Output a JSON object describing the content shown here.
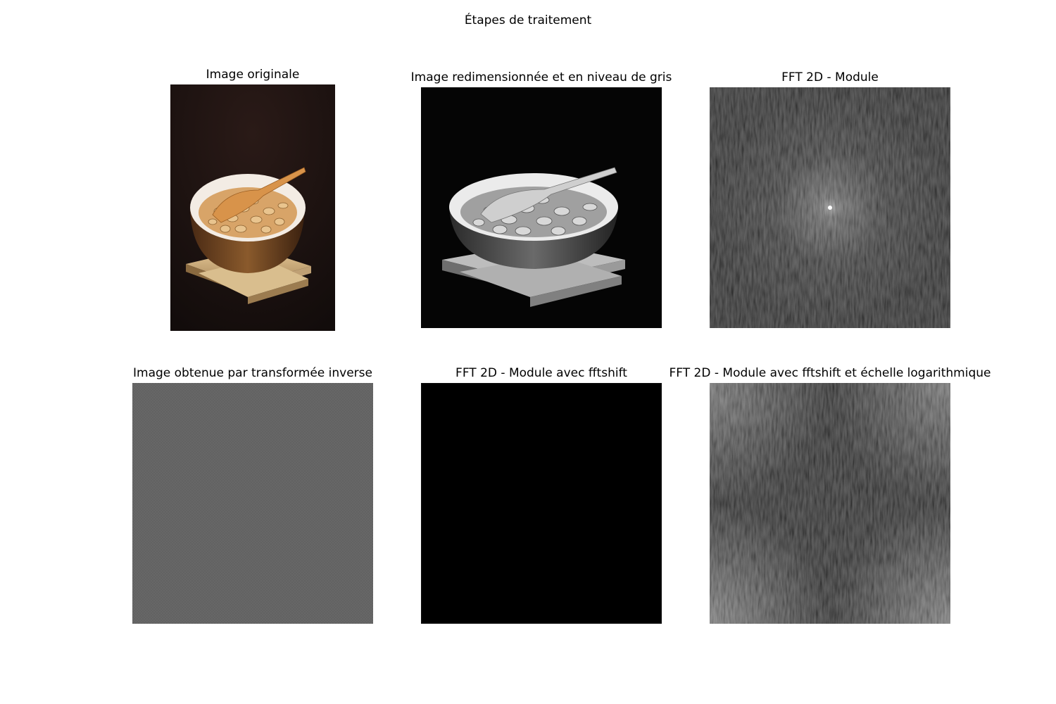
{
  "figure": {
    "title": "Étapes de traitement"
  },
  "panels": [
    {
      "title": "Image originale"
    },
    {
      "title": "Image redimensionnée et en niveau de gris"
    },
    {
      "title": "FFT 2D - Module"
    },
    {
      "title": "Image obtenue par transformée inverse"
    },
    {
      "title": "FFT 2D - Module avec fftshift"
    },
    {
      "title": "FFT 2D - Module avec fftshift et échelle logarithmique"
    }
  ]
}
